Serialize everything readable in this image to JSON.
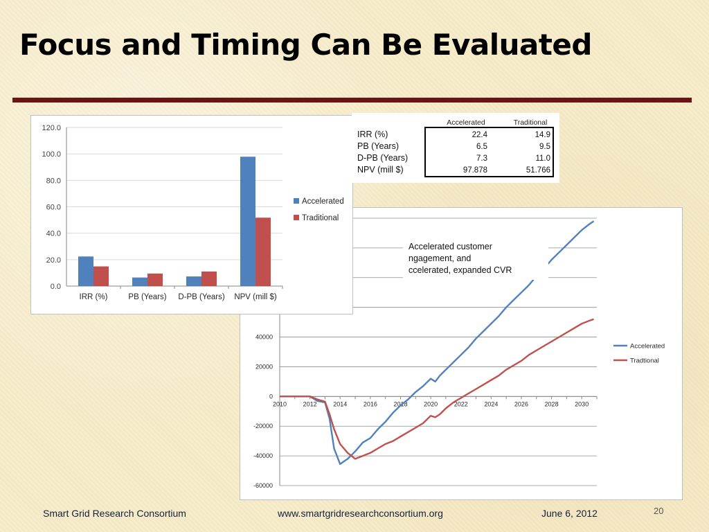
{
  "slide": {
    "title": "Focus and Timing Can Be Evaluated",
    "footer_left": "Smart Grid Research Consortium",
    "footer_center": "www.smartgridresearchconsortium.org",
    "footer_right": "June 6, 2012",
    "page_number": "20"
  },
  "colors": {
    "accelerated": "#4f81bd",
    "traditional": "#c0504d",
    "rule": "#6b1414"
  },
  "chart_data": [
    {
      "type": "bar",
      "categories": [
        "IRR (%)",
        "PB (Years)",
        "D-PB (Years)",
        "NPV (mill $)"
      ],
      "series": [
        {
          "name": "Accelerated",
          "values": [
            22.4,
            6.5,
            7.3,
            97.878
          ]
        },
        {
          "name": "Traditional",
          "values": [
            14.9,
            9.5,
            11.0,
            51.766
          ]
        }
      ],
      "ylim": [
        0,
        120
      ],
      "yticks": [
        "0.0",
        "20.0",
        "40.0",
        "60.0",
        "80.0",
        "100.0",
        "120.0"
      ],
      "grid": true,
      "legend": "right"
    },
    {
      "type": "table",
      "columns": [
        "",
        "Accelerated",
        "Traditional"
      ],
      "rows": [
        [
          "IRR (%)",
          "22.4",
          "14.9"
        ],
        [
          "PB (Years)",
          "6.5",
          "9.5"
        ],
        [
          "D-PB (Years)",
          "7.3",
          "11.0"
        ],
        [
          "NPV (mill $)",
          "97.878",
          "51.766"
        ]
      ]
    },
    {
      "type": "line",
      "xlim": [
        2010,
        2031
      ],
      "ylim": [
        -60000,
        120000
      ],
      "xticks": [
        "2010",
        "2012",
        "2014",
        "2016",
        "2018",
        "2020",
        "2022",
        "2024",
        "2026",
        "2028",
        "2030"
      ],
      "yticks": [
        "-60000",
        "-40000",
        "-20000",
        "0",
        "20000",
        "40000"
      ],
      "annotation": "Accelerated customer engagement, and accelerated, expanded CVR",
      "grid": true,
      "legend": "right",
      "series": [
        {
          "name": "Accelerated",
          "points": [
            [
              2010,
              0
            ],
            [
              2011,
              0
            ],
            [
              2012,
              0
            ],
            [
              2012.5,
              -3000
            ],
            [
              2013,
              -4000
            ],
            [
              2013.3,
              -15000
            ],
            [
              2013.6,
              -35000
            ],
            [
              2014,
              -45500
            ],
            [
              2014.5,
              -42000
            ],
            [
              2015,
              -37000
            ],
            [
              2015.5,
              -31000
            ],
            [
              2016,
              -28000
            ],
            [
              2016.5,
              -22000
            ],
            [
              2017,
              -17000
            ],
            [
              2017.5,
              -11000
            ],
            [
              2018,
              -6000
            ],
            [
              2018.5,
              -2000
            ],
            [
              2019,
              3000
            ],
            [
              2019.5,
              7000
            ],
            [
              2020,
              12000
            ],
            [
              2020.3,
              10000
            ],
            [
              2020.6,
              14000
            ],
            [
              2021,
              18000
            ],
            [
              2021.5,
              23000
            ],
            [
              2022,
              28000
            ],
            [
              2022.5,
              33000
            ],
            [
              2023,
              39000
            ],
            [
              2023.5,
              44000
            ],
            [
              2024,
              49000
            ],
            [
              2024.5,
              54000
            ],
            [
              2025,
              60000
            ],
            [
              2025.5,
              65000
            ],
            [
              2026,
              70000
            ],
            [
              2026.5,
              75000
            ],
            [
              2027,
              81000
            ],
            [
              2027.5,
              86000
            ],
            [
              2028,
              92000
            ],
            [
              2028.5,
              97000
            ],
            [
              2029,
              102000
            ],
            [
              2029.5,
              107000
            ],
            [
              2030,
              112000
            ],
            [
              2030.5,
              116000
            ],
            [
              2030.8,
              118000
            ]
          ]
        },
        {
          "name": "Traditional",
          "points": [
            [
              2010,
              0
            ],
            [
              2011,
              0
            ],
            [
              2012,
              0
            ],
            [
              2012.5,
              -2000
            ],
            [
              2013,
              -3500
            ],
            [
              2013.3,
              -12000
            ],
            [
              2013.6,
              -22000
            ],
            [
              2014,
              -32000
            ],
            [
              2014.5,
              -38000
            ],
            [
              2015,
              -42000
            ],
            [
              2015.5,
              -40000
            ],
            [
              2016,
              -38000
            ],
            [
              2016.5,
              -35000
            ],
            [
              2017,
              -32000
            ],
            [
              2017.5,
              -30000
            ],
            [
              2018,
              -27000
            ],
            [
              2018.5,
              -24000
            ],
            [
              2019,
              -21000
            ],
            [
              2019.5,
              -18000
            ],
            [
              2020,
              -13000
            ],
            [
              2020.3,
              -14000
            ],
            [
              2020.6,
              -12000
            ],
            [
              2021,
              -8000
            ],
            [
              2021.5,
              -4000
            ],
            [
              2022,
              -1000
            ],
            [
              2022.5,
              2000
            ],
            [
              2023,
              5000
            ],
            [
              2023.5,
              8000
            ],
            [
              2024,
              11000
            ],
            [
              2024.5,
              14000
            ],
            [
              2025,
              18000
            ],
            [
              2025.5,
              21000
            ],
            [
              2026,
              24000
            ],
            [
              2026.5,
              28000
            ],
            [
              2027,
              31000
            ],
            [
              2027.5,
              34000
            ],
            [
              2028,
              37000
            ],
            [
              2028.5,
              40000
            ],
            [
              2029,
              43000
            ],
            [
              2029.5,
              46000
            ],
            [
              2030,
              49000
            ],
            [
              2030.5,
              51000
            ],
            [
              2030.8,
              52000
            ]
          ]
        }
      ]
    }
  ]
}
